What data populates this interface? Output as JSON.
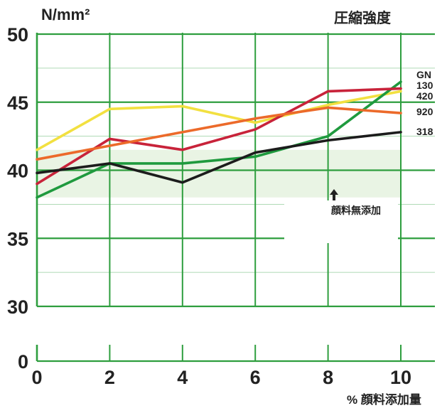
{
  "chart_data": {
    "type": "line",
    "title": "圧縮強度",
    "ylabel": "N/mm²",
    "xlabel": "% 顔料添加量",
    "x": [
      0,
      2,
      4,
      6,
      8,
      10
    ],
    "x_ticks": [
      "0",
      "2",
      "4",
      "6",
      "8",
      "10"
    ],
    "y_ticks": [
      "50",
      "45",
      "40",
      "35",
      "30",
      "0"
    ],
    "ylim": [
      30,
      50
    ],
    "y_axis_break": true,
    "grid": true,
    "grid_color": "#2e9e3e",
    "legend": "labels at right end of each line",
    "reference_band": {
      "y_range": [
        38,
        41.5
      ],
      "note": "顔料無添加"
    },
    "series": [
      {
        "name": "GN",
        "color": "#f2e040",
        "values": [
          41.5,
          44.5,
          44.7,
          43.5,
          44.8,
          45.8
        ]
      },
      {
        "name": "130",
        "color": "#1f9a3e",
        "values": [
          38.0,
          40.5,
          40.5,
          41.0,
          42.5,
          46.5
        ]
      },
      {
        "name": "420",
        "color": "#c8233a",
        "values": [
          39.0,
          42.3,
          41.5,
          43.0,
          45.8,
          46.0
        ]
      },
      {
        "name": "920",
        "color": "#ec6a2a",
        "values": [
          40.8,
          41.8,
          42.8,
          43.8,
          44.6,
          44.2
        ]
      },
      {
        "name": "318",
        "color": "#1c1c1c",
        "values": [
          39.8,
          40.5,
          39.1,
          41.3,
          42.2,
          42.8
        ]
      }
    ]
  }
}
